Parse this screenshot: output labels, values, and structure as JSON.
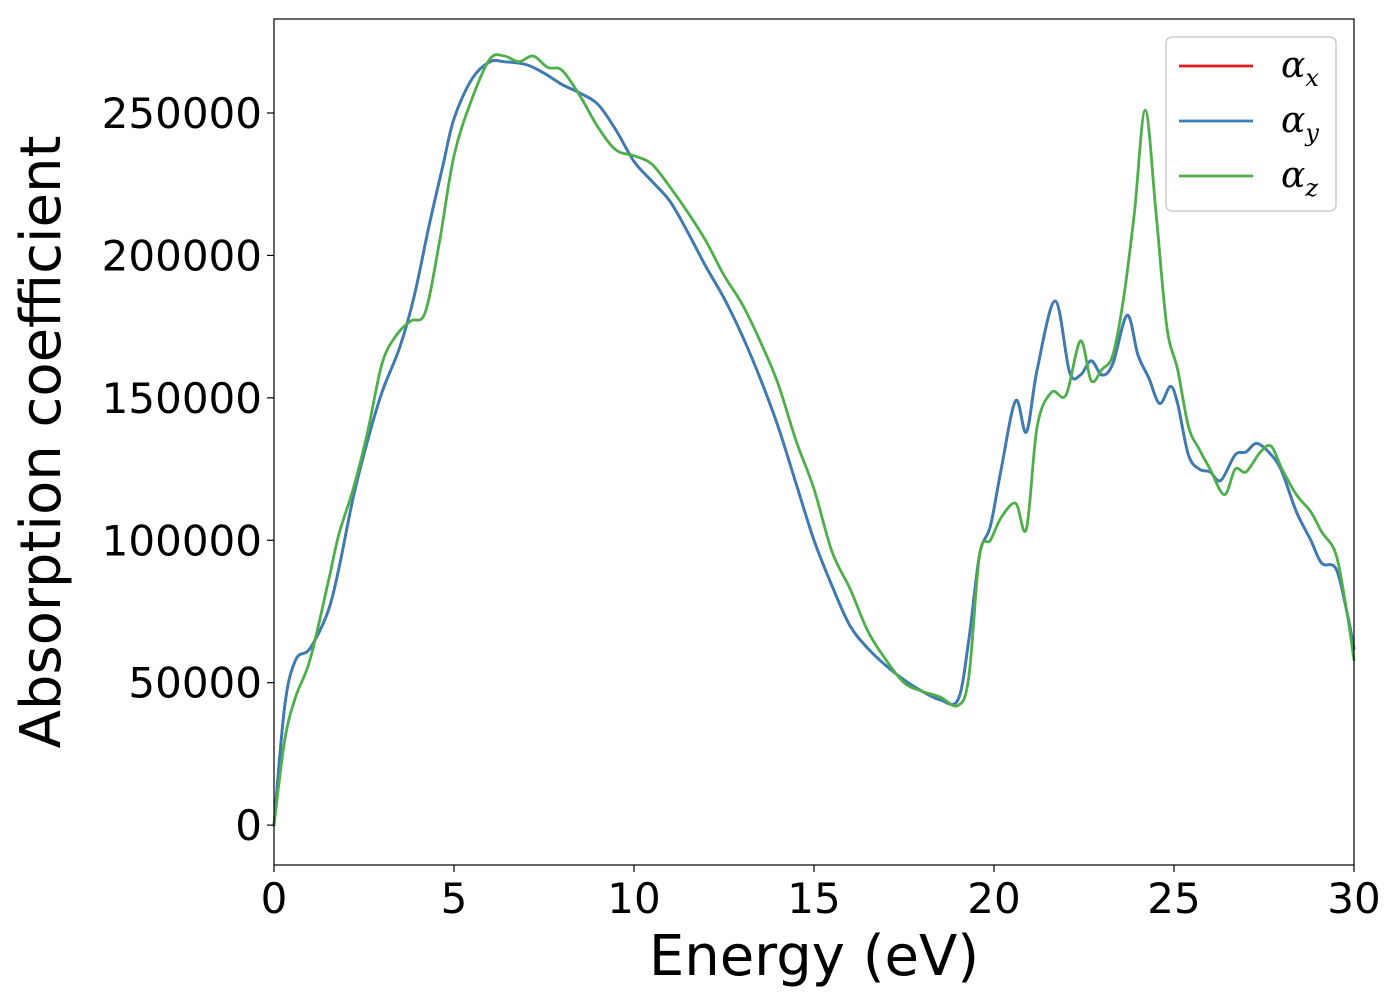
{
  "chart_data": {
    "type": "line",
    "title": "",
    "xlabel": "Energy (eV)",
    "ylabel": "Absorption coefficient",
    "xlim": [
      0,
      30
    ],
    "ylim": [
      -14000,
      283000
    ],
    "xticks": [
      0,
      5,
      10,
      15,
      20,
      25,
      30
    ],
    "xtick_labels": [
      "0",
      "5",
      "10",
      "15",
      "20",
      "25",
      "30"
    ],
    "yticks": [
      0,
      50000,
      100000,
      150000,
      200000,
      250000
    ],
    "ytick_labels": [
      "0",
      "50000",
      "100000",
      "150000",
      "200000",
      "250000"
    ],
    "grid": false,
    "legend_position": "top-right",
    "series": [
      {
        "name": "α",
        "subscript": "x",
        "color": "#e41a1c",
        "x": [
          0,
          0.3,
          0.6,
          1.0,
          1.5,
          1.8,
          2.2,
          2.6,
          3.0,
          3.5,
          3.9,
          4.3,
          4.7,
          5.0,
          5.5,
          6.0,
          6.4,
          7.0,
          7.5,
          8.0,
          8.5,
          9.0,
          9.5,
          10.0,
          10.5,
          11.0,
          11.5,
          12.0,
          12.5,
          13.0,
          13.5,
          14.0,
          14.5,
          15.0,
          15.5,
          16.0,
          16.5,
          17.0,
          17.5,
          18.0,
          18.5,
          19.0,
          19.3,
          19.6,
          19.9,
          20.2,
          20.6,
          20.9,
          21.2,
          21.7,
          22.1,
          22.4,
          22.7,
          23.0,
          23.3,
          23.7,
          24.0,
          24.3,
          24.6,
          24.9,
          25.1,
          25.4,
          25.7,
          26.0,
          26.3,
          26.7,
          27.0,
          27.3,
          27.7,
          28.0,
          28.4,
          28.8,
          29.1,
          29.5,
          29.8,
          30.0
        ],
        "y": [
          0,
          42000,
          58000,
          62000,
          75000,
          90000,
          115000,
          135000,
          152000,
          168000,
          186000,
          210000,
          232000,
          248000,
          262000,
          268000,
          268000,
          267000,
          264000,
          260000,
          257000,
          253000,
          244000,
          233000,
          226000,
          219000,
          208000,
          196000,
          185000,
          172000,
          157000,
          140000,
          120000,
          100000,
          84000,
          70000,
          62000,
          56000,
          51000,
          47000,
          44000,
          44000,
          65000,
          95000,
          105000,
          125000,
          149000,
          138000,
          160000,
          184000,
          159000,
          158000,
          163000,
          158000,
          162000,
          179000,
          165000,
          157000,
          148000,
          154000,
          148000,
          130000,
          125000,
          124000,
          121000,
          130000,
          131000,
          134000,
          130000,
          124000,
          110000,
          100000,
          92000,
          90000,
          75000,
          62000
        ]
      },
      {
        "name": "α",
        "subscript": "y",
        "color": "#377eb8",
        "x": [
          0,
          0.3,
          0.6,
          1.0,
          1.5,
          1.8,
          2.2,
          2.6,
          3.0,
          3.5,
          3.9,
          4.3,
          4.7,
          5.0,
          5.5,
          6.0,
          6.4,
          7.0,
          7.5,
          8.0,
          8.5,
          9.0,
          9.5,
          10.0,
          10.5,
          11.0,
          11.5,
          12.0,
          12.5,
          13.0,
          13.5,
          14.0,
          14.5,
          15.0,
          15.5,
          16.0,
          16.5,
          17.0,
          17.5,
          18.0,
          18.5,
          19.0,
          19.3,
          19.6,
          19.9,
          20.2,
          20.6,
          20.9,
          21.2,
          21.7,
          22.1,
          22.4,
          22.7,
          23.0,
          23.3,
          23.7,
          24.0,
          24.3,
          24.6,
          24.9,
          25.1,
          25.4,
          25.7,
          26.0,
          26.3,
          26.7,
          27.0,
          27.3,
          27.7,
          28.0,
          28.4,
          28.8,
          29.1,
          29.5,
          29.8,
          30.0
        ],
        "y": [
          0,
          42000,
          58000,
          62000,
          75000,
          90000,
          115000,
          135000,
          152000,
          168000,
          186000,
          210000,
          232000,
          248000,
          262000,
          268000,
          268000,
          267000,
          264000,
          260000,
          257000,
          253000,
          244000,
          233000,
          226000,
          219000,
          208000,
          196000,
          185000,
          172000,
          157000,
          140000,
          120000,
          100000,
          84000,
          70000,
          62000,
          56000,
          51000,
          47000,
          44000,
          44000,
          65000,
          95000,
          105000,
          125000,
          149000,
          138000,
          160000,
          184000,
          159000,
          158000,
          163000,
          158000,
          162000,
          179000,
          165000,
          157000,
          148000,
          154000,
          148000,
          130000,
          125000,
          124000,
          121000,
          130000,
          131000,
          134000,
          130000,
          124000,
          110000,
          100000,
          92000,
          90000,
          75000,
          62000
        ]
      },
      {
        "name": "α",
        "subscript": "z",
        "color": "#4daf4a",
        "x": [
          0,
          0.3,
          0.6,
          1.0,
          1.5,
          1.8,
          2.2,
          2.6,
          3.0,
          3.4,
          3.8,
          4.2,
          4.6,
          5.0,
          5.5,
          6.0,
          6.4,
          6.8,
          7.2,
          7.6,
          8.0,
          8.5,
          9.0,
          9.5,
          10.0,
          10.5,
          11.0,
          11.5,
          12.0,
          12.5,
          13.0,
          13.5,
          14.0,
          14.5,
          15.0,
          15.5,
          16.0,
          16.5,
          17.0,
          17.5,
          18.0,
          18.5,
          19.0,
          19.3,
          19.6,
          19.9,
          20.2,
          20.6,
          20.9,
          21.2,
          21.6,
          22.0,
          22.4,
          22.7,
          23.0,
          23.3,
          23.6,
          23.9,
          24.2,
          24.5,
          24.8,
          25.1,
          25.4,
          25.7,
          26.0,
          26.4,
          26.7,
          27.0,
          27.4,
          27.7,
          28.0,
          28.4,
          28.8,
          29.1,
          29.5,
          29.8,
          30.0
        ],
        "y": [
          0,
          30000,
          45000,
          58000,
          85000,
          102000,
          118000,
          138000,
          162000,
          172000,
          177000,
          180000,
          205000,
          235000,
          255000,
          269000,
          270000,
          268000,
          270000,
          266000,
          265000,
          256000,
          245000,
          237000,
          235000,
          232000,
          224000,
          215000,
          205000,
          193000,
          183000,
          170000,
          155000,
          135000,
          118000,
          96000,
          83000,
          68000,
          58000,
          50000,
          47000,
          45000,
          42000,
          52000,
          95000,
          100000,
          108000,
          113000,
          104000,
          140000,
          152000,
          151000,
          170000,
          156000,
          160000,
          165000,
          185000,
          215000,
          251000,
          215000,
          175000,
          160000,
          140000,
          132000,
          125000,
          116000,
          125000,
          124000,
          131000,
          133000,
          125000,
          116000,
          110000,
          103000,
          95000,
          75000,
          58000
        ]
      }
    ]
  }
}
